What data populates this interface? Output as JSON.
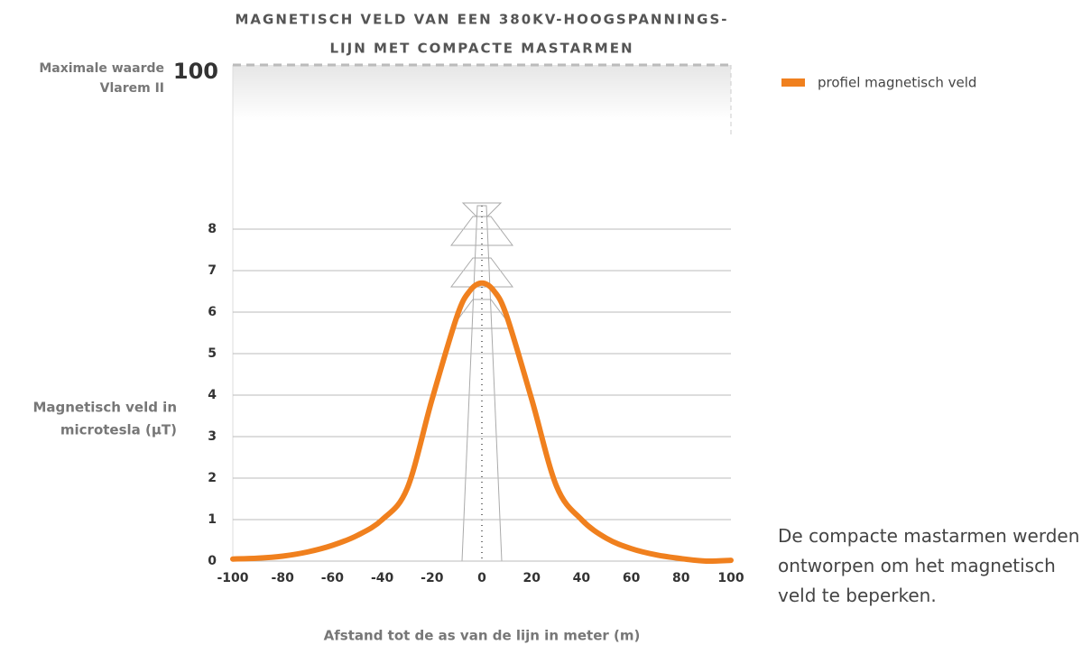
{
  "chart_data": {
    "type": "line",
    "title": [
      "MAGNETISCH VELD VAN EEN 380KV-HOOGSPANNINGS-",
      "LIJN MET COMPACTE MASTARMEN"
    ],
    "x_label": "Afstand tot de as van de lijn in meter (m)",
    "y_label": [
      "Magnetisch veld in",
      "microtesla (µT)"
    ],
    "annotation": "De compacte mastarmen werden ontworpen om het magnetisch veld te beperken.",
    "limit": {
      "value": 100,
      "label": [
        "Maximale waarde",
        "Vlarem II"
      ]
    },
    "x": [
      -100,
      -90,
      -80,
      -70,
      -60,
      -50,
      -40,
      -30,
      -20,
      -10,
      -5,
      0,
      5,
      10,
      20,
      30,
      40,
      50,
      60,
      70,
      80,
      90,
      100
    ],
    "series": [
      {
        "name": "profiel magnetisch veld",
        "color": "#f0801e",
        "values": [
          0.05,
          0.07,
          0.12,
          0.22,
          0.38,
          0.62,
          1.0,
          1.75,
          3.9,
          5.9,
          6.5,
          6.7,
          6.5,
          5.9,
          3.9,
          1.8,
          1.0,
          0.55,
          0.3,
          0.15,
          0.06,
          0.0,
          0.02
        ]
      }
    ],
    "xlim": [
      -100,
      100
    ],
    "xticks": [
      -100,
      -80,
      -60,
      -40,
      -20,
      0,
      20,
      40,
      60,
      80,
      100
    ],
    "ylim": [
      0,
      8
    ],
    "yticks": [
      0,
      1,
      2,
      3,
      4,
      5,
      6,
      7,
      8
    ],
    "grid": true,
    "legend": "top-right"
  }
}
